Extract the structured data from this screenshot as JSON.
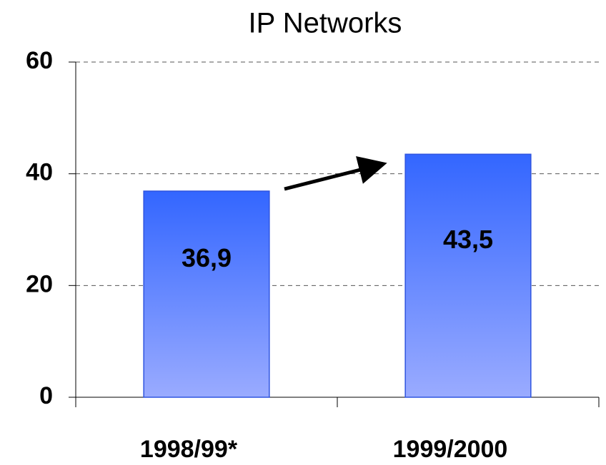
{
  "chart_data": {
    "type": "bar",
    "title": "IP Networks",
    "categories": [
      "1998/99*",
      "1999/2000"
    ],
    "values": [
      36.9,
      43.5
    ],
    "value_labels": [
      "36,9",
      "43,5"
    ],
    "color": "#3366ff",
    "ylim": [
      0,
      60
    ],
    "yticks": [
      0,
      20,
      40,
      60
    ],
    "grid": true
  }
}
